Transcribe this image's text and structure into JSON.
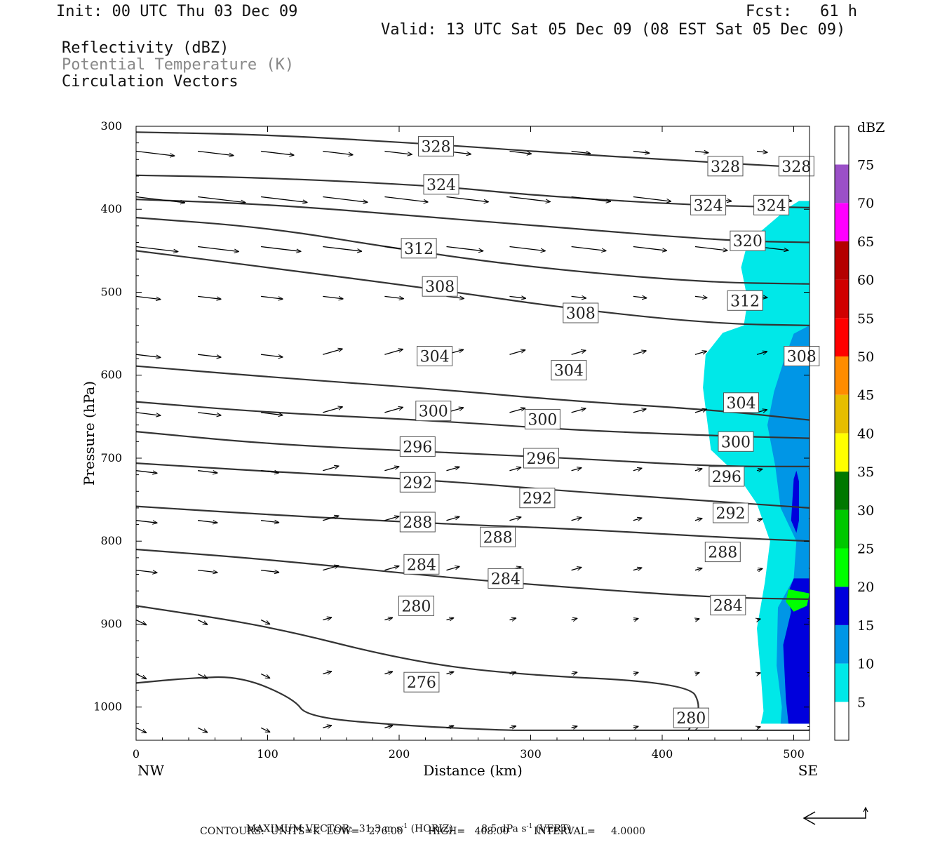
{
  "header": {
    "init": "Init: 00 UTC Thu 03 Dec 09",
    "fcst": "Fcst:   61 h",
    "valid": "Valid: 13 UTC Sat 05 Dec 09 (08 EST Sat 05 Dec 09)",
    "fields": [
      "Reflectivity (dBZ)",
      "Potential Temperature (K)",
      "Circulation Vectors"
    ]
  },
  "colors": {
    "theta_contour": "#333333",
    "field2_text": "#888888",
    "dbz_scale": [
      "#ffffff",
      "#00e8e8",
      "#0096e6",
      "#0000dc",
      "#00ff00",
      "#00c800",
      "#007800",
      "#ffff00",
      "#e6be00",
      "#ff8c00",
      "#ff0000",
      "#d00000",
      "#b40000",
      "#ff00ff",
      "#9b50c8",
      "#ffffff"
    ]
  },
  "chart_data": {
    "type": "vertical cross-section",
    "xlabel": "Distance (km)",
    "ylabel": "Pressure (hPa)",
    "x_end_left": "NW",
    "x_end_right": "SE",
    "xlim": [
      0,
      512
    ],
    "ylim": [
      300,
      1040
    ],
    "x_ticks": [
      0,
      100,
      200,
      300,
      400,
      500
    ],
    "y_ticks": [
      300,
      400,
      500,
      600,
      700,
      800,
      900,
      1000
    ],
    "colorbar": {
      "title": "dBZ",
      "levels": [
        5,
        10,
        15,
        20,
        25,
        30,
        35,
        40,
        45,
        50,
        55,
        60,
        65,
        70,
        75
      ]
    },
    "theta_contours": [
      {
        "value": 328,
        "points": [
          [
            0,
            307
          ],
          [
            100,
            310
          ],
          [
            230,
            322
          ],
          [
            300,
            330
          ],
          [
            420,
            342
          ],
          [
            512,
            350
          ]
        ]
      },
      {
        "value": 324,
        "points": [
          [
            0,
            359
          ],
          [
            100,
            362
          ],
          [
            230,
            372
          ],
          [
            300,
            383
          ],
          [
            420,
            395
          ],
          [
            512,
            398
          ]
        ]
      },
      {
        "value": 320,
        "points": [
          [
            0,
            388
          ],
          [
            100,
            394
          ],
          [
            230,
            410
          ],
          [
            320,
            422
          ],
          [
            450,
            438
          ],
          [
            512,
            440
          ]
        ]
      },
      {
        "value": 312,
        "points": [
          [
            0,
            410
          ],
          [
            100,
            422
          ],
          [
            200,
            448
          ],
          [
            300,
            470
          ],
          [
            430,
            488
          ],
          [
            512,
            490
          ]
        ]
      },
      {
        "value": 308,
        "points": [
          [
            0,
            450
          ],
          [
            100,
            470
          ],
          [
            230,
            497
          ],
          [
            330,
            520
          ],
          [
            440,
            538
          ],
          [
            512,
            540
          ]
        ]
      },
      {
        "value": 304,
        "points": [
          [
            0,
            589
          ],
          [
            100,
            602
          ],
          [
            230,
            617
          ],
          [
            330,
            631
          ],
          [
            440,
            642
          ],
          [
            512,
            654
          ]
        ]
      },
      {
        "value": 300,
        "points": [
          [
            0,
            632
          ],
          [
            100,
            645
          ],
          [
            230,
            655
          ],
          [
            330,
            666
          ],
          [
            440,
            673
          ],
          [
            512,
            676
          ]
        ]
      },
      {
        "value": 296,
        "points": [
          [
            0,
            668
          ],
          [
            100,
            683
          ],
          [
            230,
            693
          ],
          [
            330,
            700
          ],
          [
            440,
            710
          ],
          [
            512,
            710
          ]
        ]
      },
      {
        "value": 292,
        "points": [
          [
            0,
            706
          ],
          [
            100,
            716
          ],
          [
            230,
            727
          ],
          [
            330,
            740
          ],
          [
            440,
            752
          ],
          [
            512,
            760
          ]
        ]
      },
      {
        "value": 288,
        "points": [
          [
            0,
            758
          ],
          [
            100,
            768
          ],
          [
            230,
            779
          ],
          [
            330,
            785
          ],
          [
            440,
            795
          ],
          [
            512,
            800
          ]
        ]
      },
      {
        "value": 284,
        "points": [
          [
            0,
            810
          ],
          [
            100,
            822
          ],
          [
            230,
            843
          ],
          [
            330,
            856
          ],
          [
            440,
            868
          ],
          [
            512,
            870
          ]
        ]
      },
      {
        "value": 280,
        "points": [
          [
            0,
            878
          ],
          [
            100,
            902
          ],
          [
            200,
            942
          ],
          [
            280,
            960
          ],
          [
            420,
            971
          ],
          [
            430,
            1000
          ],
          [
            420,
            1028
          ]
        ]
      },
      {
        "value": 276,
        "points": [
          [
            0,
            971
          ],
          [
            40,
            965
          ],
          [
            80,
            963
          ],
          [
            120,
            990
          ],
          [
            130,
            1012
          ],
          [
            200,
            1022
          ],
          [
            280,
            1028
          ],
          [
            300,
            1028
          ],
          [
            512,
            1028
          ]
        ]
      }
    ],
    "contour_labels": [
      {
        "text": "328",
        "x": 228,
        "p": 324
      },
      {
        "text": "328",
        "x": 448,
        "p": 348
      },
      {
        "text": "328",
        "x": 502,
        "p": 348
      },
      {
        "text": "324",
        "x": 232,
        "p": 370
      },
      {
        "text": "324",
        "x": 435,
        "p": 395
      },
      {
        "text": "324",
        "x": 483,
        "p": 395
      },
      {
        "text": "320",
        "x": 465,
        "p": 438
      },
      {
        "text": "312",
        "x": 215,
        "p": 447
      },
      {
        "text": "308",
        "x": 231,
        "p": 493
      },
      {
        "text": "312",
        "x": 463,
        "p": 510
      },
      {
        "text": "308",
        "x": 338,
        "p": 525
      },
      {
        "text": "304",
        "x": 227,
        "p": 577
      },
      {
        "text": "304",
        "x": 329,
        "p": 594
      },
      {
        "text": "308",
        "x": 506,
        "p": 577
      },
      {
        "text": "304",
        "x": 460,
        "p": 633
      },
      {
        "text": "300",
        "x": 226,
        "p": 643
      },
      {
        "text": "300",
        "x": 309,
        "p": 653
      },
      {
        "text": "300",
        "x": 456,
        "p": 680
      },
      {
        "text": "296",
        "x": 214,
        "p": 686
      },
      {
        "text": "296",
        "x": 308,
        "p": 700
      },
      {
        "text": "296",
        "x": 449,
        "p": 722
      },
      {
        "text": "292",
        "x": 214,
        "p": 729
      },
      {
        "text": "292",
        "x": 305,
        "p": 748
      },
      {
        "text": "292",
        "x": 452,
        "p": 766
      },
      {
        "text": "288",
        "x": 214,
        "p": 777
      },
      {
        "text": "288",
        "x": 275,
        "p": 795
      },
      {
        "text": "288",
        "x": 446,
        "p": 813
      },
      {
        "text": "284",
        "x": 217,
        "p": 828
      },
      {
        "text": "284",
        "x": 281,
        "p": 845
      },
      {
        "text": "284",
        "x": 450,
        "p": 877
      },
      {
        "text": "280",
        "x": 213,
        "p": 878
      },
      {
        "text": "276",
        "x": 217,
        "p": 970
      },
      {
        "text": "280",
        "x": 422,
        "p": 1013
      }
    ],
    "reflectivity_regions": [
      {
        "dbz": 5,
        "points": [
          [
            512,
            390
          ],
          [
            504,
            390
          ],
          [
            496,
            398
          ],
          [
            485,
            413
          ],
          [
            465,
            440
          ],
          [
            460,
            470
          ],
          [
            465,
            510
          ],
          [
            462,
            540
          ],
          [
            446,
            549
          ],
          [
            433,
            575
          ],
          [
            431,
            615
          ],
          [
            437,
            690
          ],
          [
            457,
            720
          ],
          [
            472,
            755
          ],
          [
            482,
            800
          ],
          [
            478,
            850
          ],
          [
            472,
            905
          ],
          [
            475,
            960
          ],
          [
            477,
            1005
          ],
          [
            475,
            1020
          ],
          [
            512,
            1020
          ]
        ]
      },
      {
        "dbz": 10,
        "points": [
          [
            512,
            540
          ],
          [
            500,
            550
          ],
          [
            493,
            580
          ],
          [
            485,
            620
          ],
          [
            480,
            660
          ],
          [
            486,
            710
          ],
          [
            490,
            760
          ],
          [
            502,
            800
          ],
          [
            500,
            845
          ],
          [
            488,
            880
          ],
          [
            487,
            950
          ],
          [
            491,
            1000
          ],
          [
            490,
            1020
          ],
          [
            512,
            1020
          ]
        ]
      },
      {
        "dbz": 15,
        "points": [
          [
            512,
            845
          ],
          [
            500,
            845
          ],
          [
            495,
            865
          ],
          [
            498,
            885
          ],
          [
            492,
            925
          ],
          [
            494,
            990
          ],
          [
            496,
            1020
          ],
          [
            512,
            1020
          ]
        ]
      },
      {
        "dbz": 15,
        "points": [
          [
            500,
            725
          ],
          [
            502,
            715
          ],
          [
            504,
            728
          ],
          [
            504,
            775
          ],
          [
            502,
            790
          ],
          [
            498,
            775
          ]
        ]
      },
      {
        "dbz": 20,
        "points": [
          [
            512,
            863
          ],
          [
            496,
            858
          ],
          [
            494,
            873
          ],
          [
            500,
            885
          ],
          [
            510,
            878
          ]
        ]
      }
    ],
    "max_vector_horiz": "31.3 m s",
    "max_vector_vert": "8.5 dPa s",
    "vector_units": {
      "horiz": "(HORIZ)",
      "vert": "(VERT)",
      "exp": "-1"
    }
  },
  "footer": {
    "max_label": "MAXIMUM VECTOR:",
    "contours": "CONTOURS:  UNITS=K  LOW=   276.00        HIGH=   408.00        INTERVAL=     4.0000"
  }
}
